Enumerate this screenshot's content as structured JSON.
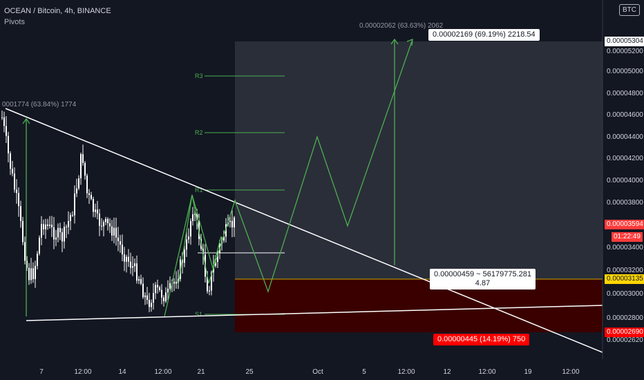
{
  "header": {
    "symbol_line": "OCEAN / Bitcoin, 4h, BINANCE",
    "indicator": "Pivots",
    "currency": "BTC"
  },
  "price_labels": {
    "target_top": "0.00005304",
    "current": "0.00003594",
    "countdown": "01:22:49",
    "entry": "0.00003135",
    "stop": "0.00002690"
  },
  "annotations": {
    "top_pattern": "0.00002062 (63.63%) 2062",
    "left_pattern": "0001774 (63.84%) 1774",
    "target_box": "0.00002169 (69.19%) 2218.54",
    "entry_box_line1": "0.00000459 ~ 56179775.281",
    "entry_box_line2": "4.87",
    "stop_box": "0.00000445 (14.19%) 750"
  },
  "pivots": [
    "R3",
    "R2",
    "R1",
    "S1"
  ],
  "colors": {
    "background": "#131722",
    "candle": "#ffffff",
    "pattern": "#4caf50",
    "target_zone": "#2a2e39",
    "stop_zone": "#3a0000",
    "entry_line": "#c9a400",
    "stop_label": "#ff0000",
    "current_label": "#ff3b3b"
  },
  "chart_data": {
    "type": "candlestick",
    "title": "OCEAN / Bitcoin, 4h, BINANCE",
    "x_ticks": [
      "7",
      "12:00",
      "14",
      "12:00",
      "21",
      "25",
      "Oct",
      "5",
      "12:00",
      "12",
      "12:00",
      "19",
      "12:00"
    ],
    "y_ticks": [
      "0.00005200",
      "0.00005000",
      "0.00004800",
      "0.00004600",
      "0.00004400",
      "0.00004200",
      "0.00004000",
      "0.00003800",
      "0.00003400",
      "0.00003200",
      "0.00003000",
      "0.00002800",
      "0.00002620"
    ],
    "ylim": [
      2.53e-05,
      5.62e-05
    ],
    "grid": false,
    "levels": {
      "target": 5.304e-05,
      "current": 3.594e-05,
      "entry": 3.135e-05,
      "stop": 2.69e-05,
      "pivot_R3": 4.954e-05,
      "pivot_R2": 4.426e-05,
      "pivot_R1": 3.895e-05,
      "pivot_S1": 2.817e-05
    }
  }
}
